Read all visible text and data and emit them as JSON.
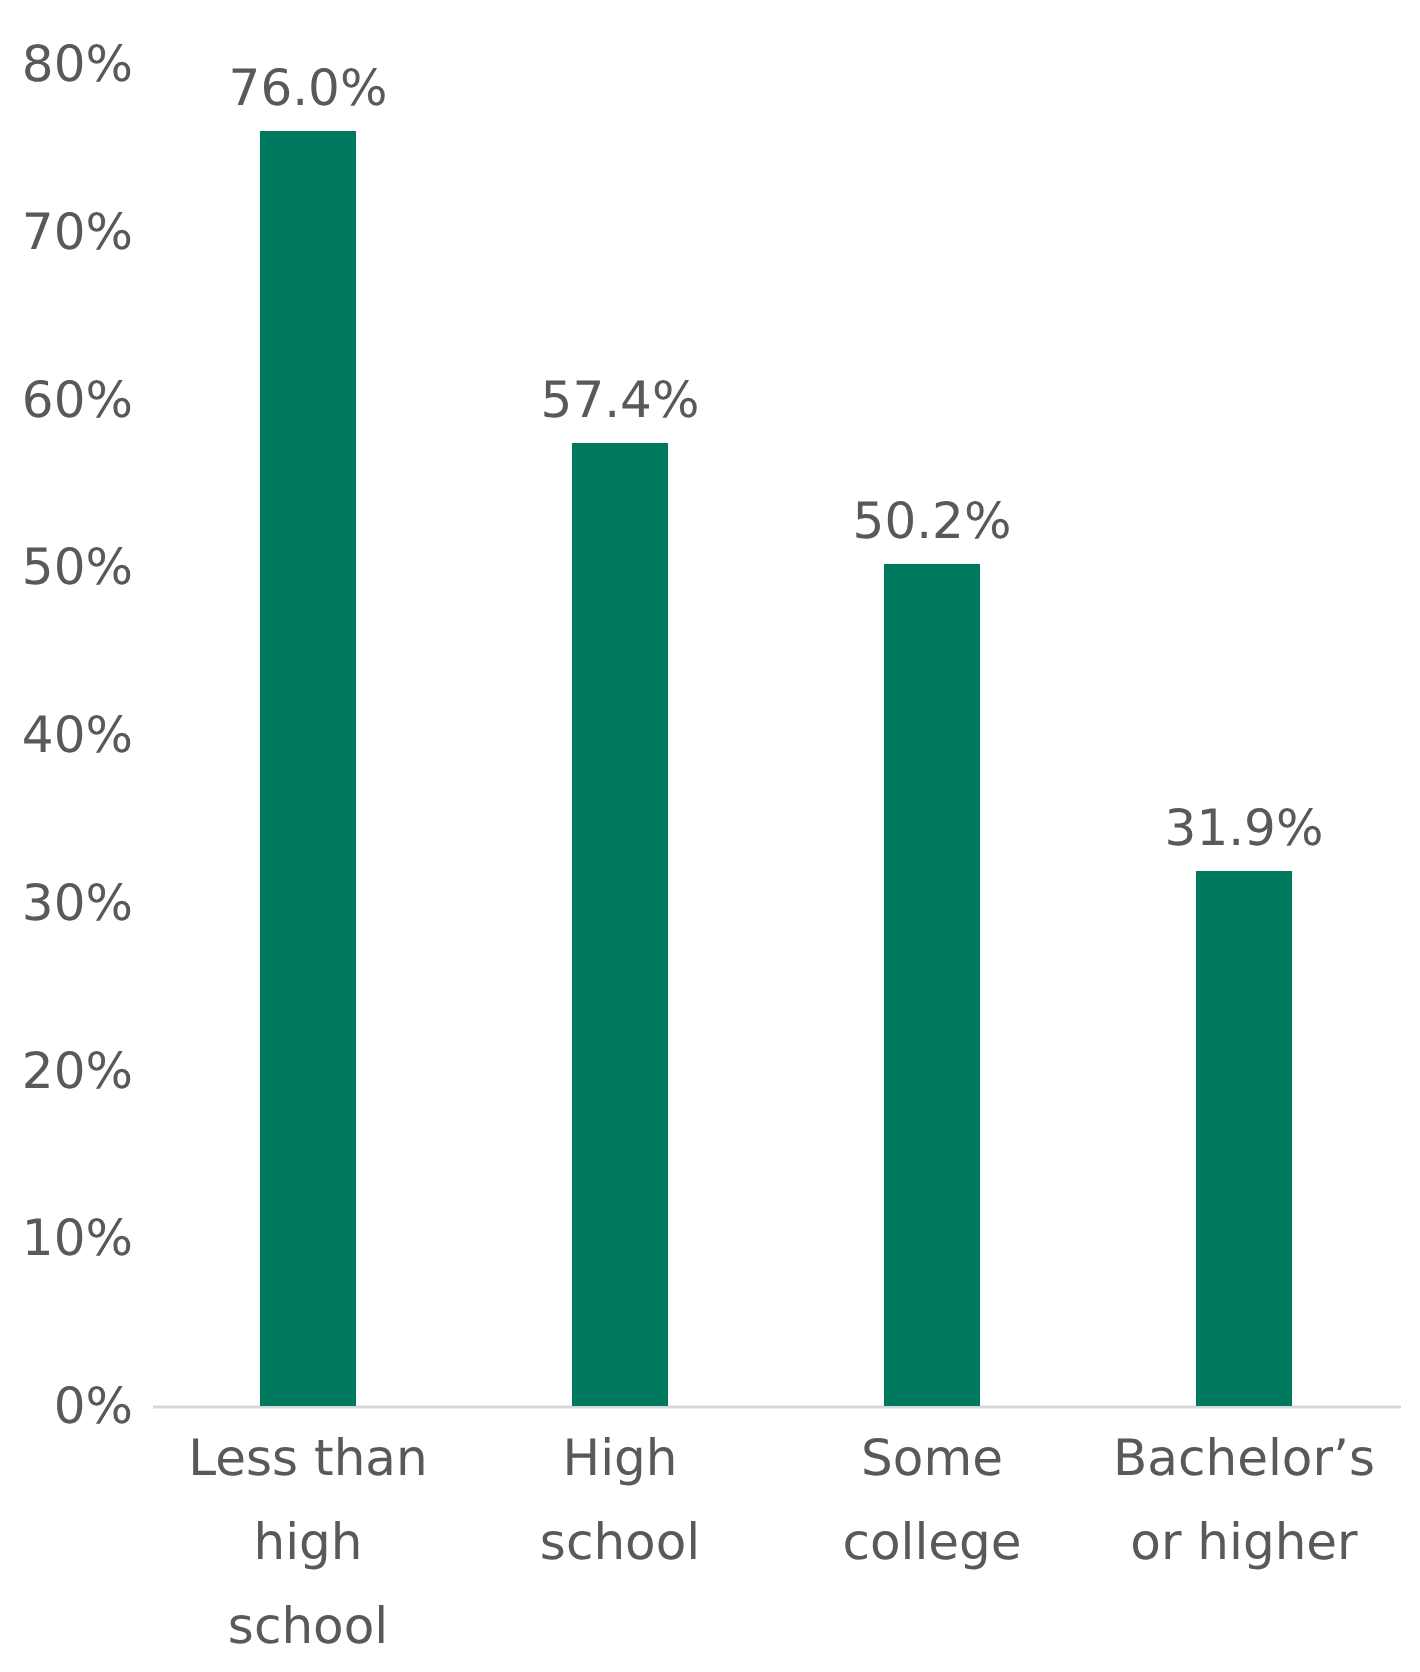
{
  "chart_data": {
    "type": "bar",
    "categories": [
      "Less than high school",
      "High school",
      "Some college",
      "Bachelor’s or higher"
    ],
    "values": [
      76.0,
      57.4,
      50.2,
      31.9
    ],
    "value_labels": [
      "76.0%",
      "57.4%",
      "50.2%",
      "31.9%"
    ],
    "color": "#007a5e",
    "ylim": [
      0,
      80
    ],
    "yticks": [
      {
        "value": 0,
        "label": "0%"
      },
      {
        "value": 10,
        "label": "10%"
      },
      {
        "value": 20,
        "label": "20%"
      },
      {
        "value": 30,
        "label": "30%"
      },
      {
        "value": 40,
        "label": "40%"
      },
      {
        "value": 50,
        "label": "50%"
      },
      {
        "value": 60,
        "label": "60%"
      },
      {
        "value": 70,
        "label": "70%"
      },
      {
        "value": 80,
        "label": "80%"
      }
    ],
    "grid": false
  }
}
